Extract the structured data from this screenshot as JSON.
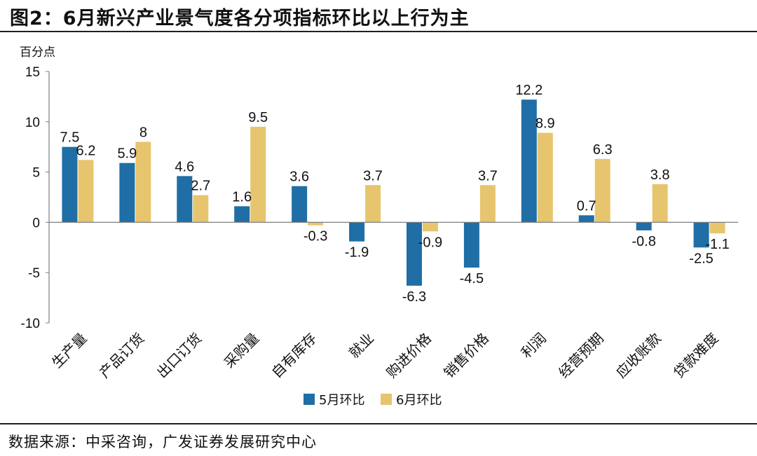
{
  "title": "图2：6月新兴产业景气度各分项指标环比以上行为主",
  "source": "数据来源：中采咨询，广发证券发展研究中心",
  "colors": {
    "series1": "#1f6ea6",
    "series2": "#e7c56e",
    "axis": "#7f7f7f"
  },
  "chart_data": {
    "type": "bar",
    "ylabel": "百分点",
    "ylim": [
      -10,
      15
    ],
    "yticks": [
      15,
      10,
      5,
      0,
      -5,
      -10
    ],
    "categories": [
      "生产量",
      "产品订货",
      "出口订货",
      "采购量",
      "自有库存",
      "就业",
      "购进价格",
      "销售价格",
      "利润",
      "经营预期",
      "应收账款",
      "贷款难度"
    ],
    "series": [
      {
        "name": "5月环比",
        "values": [
          7.5,
          5.9,
          4.6,
          1.6,
          3.6,
          -1.9,
          -6.3,
          -4.5,
          12.2,
          0.7,
          -0.8,
          -2.5
        ]
      },
      {
        "name": "6月环比",
        "values": [
          6.2,
          8.0,
          2.7,
          9.5,
          -0.3,
          3.7,
          -0.9,
          3.7,
          8.9,
          6.3,
          3.8,
          -1.1
        ]
      }
    ]
  }
}
